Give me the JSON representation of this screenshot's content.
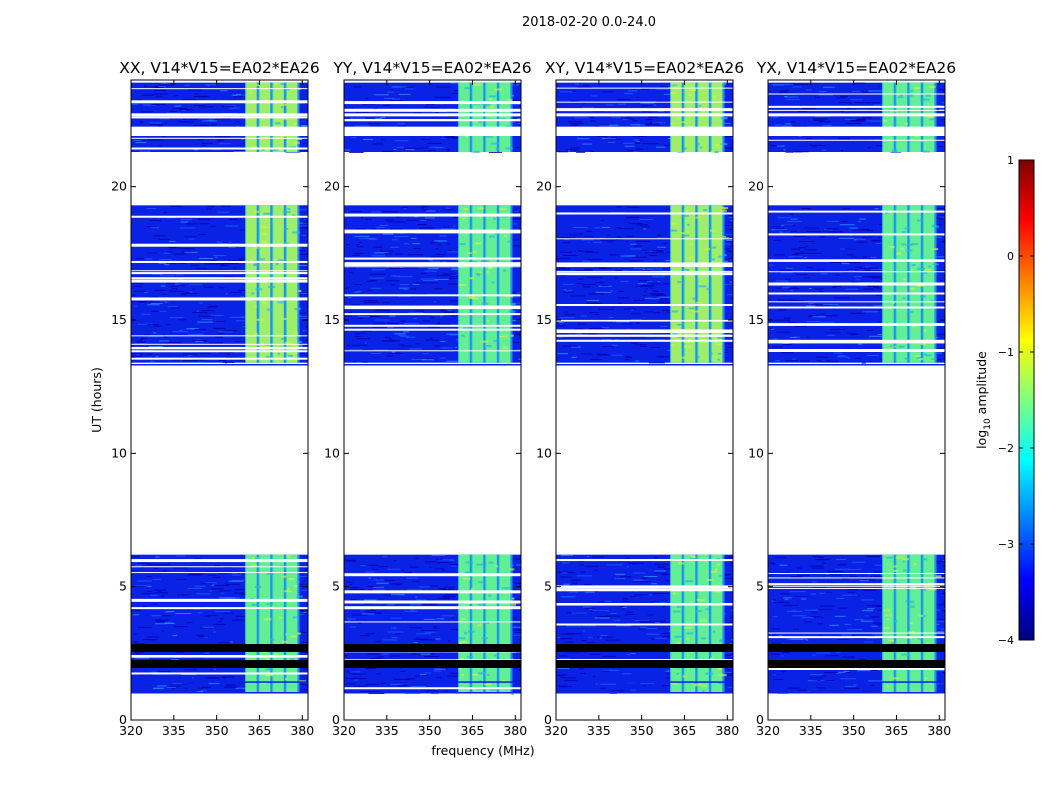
{
  "chart_data": {
    "type": "heatmap",
    "suptitle": "2018-02-20 0.0-24.0",
    "xlabel": "frequency (MHz)",
    "ylabel": "UT (hours)",
    "xlim": [
      320,
      382
    ],
    "ylim": [
      0,
      24
    ],
    "xticks": [
      320,
      335,
      350,
      365,
      380
    ],
    "yticks": [
      0,
      5,
      10,
      15,
      20
    ],
    "panels": [
      {
        "title": "XX, V14*V15=EA02*EA26",
        "polarization": "XX"
      },
      {
        "title": "YY, V14*V15=EA02*EA26",
        "polarization": "YY"
      },
      {
        "title": "XY, V14*V15=EA02*EA26",
        "polarization": "XY"
      },
      {
        "title": "YX, V14*V15=EA02*EA26",
        "polarization": "YX"
      }
    ],
    "data_blocks_ut": [
      {
        "start": 1.0,
        "end": 6.2
      },
      {
        "start": 13.4,
        "end": 19.3
      },
      {
        "start": 21.3,
        "end": 23.9
      }
    ],
    "flagged_gaps_ut": [
      {
        "start": 0.0,
        "end": 1.0
      },
      {
        "start": 6.2,
        "end": 13.4
      },
      {
        "start": 19.3,
        "end": 21.3
      }
    ],
    "bright_band_mhz": [
      360,
      379
    ],
    "colorbar": {
      "label": "log",
      "label_sub": "10",
      "label_rest": " amplitude",
      "range": [
        -4,
        1
      ],
      "ticks": [
        "1",
        "0",
        "−1",
        "−2",
        "−3",
        "−4"
      ],
      "colormap": "jet",
      "jet_colors": [
        "#00007f",
        "#0000ff",
        "#007fff",
        "#00ffff",
        "#7fff7f",
        "#ffff00",
        "#ff7f00",
        "#ff0000",
        "#7f0000"
      ]
    }
  }
}
